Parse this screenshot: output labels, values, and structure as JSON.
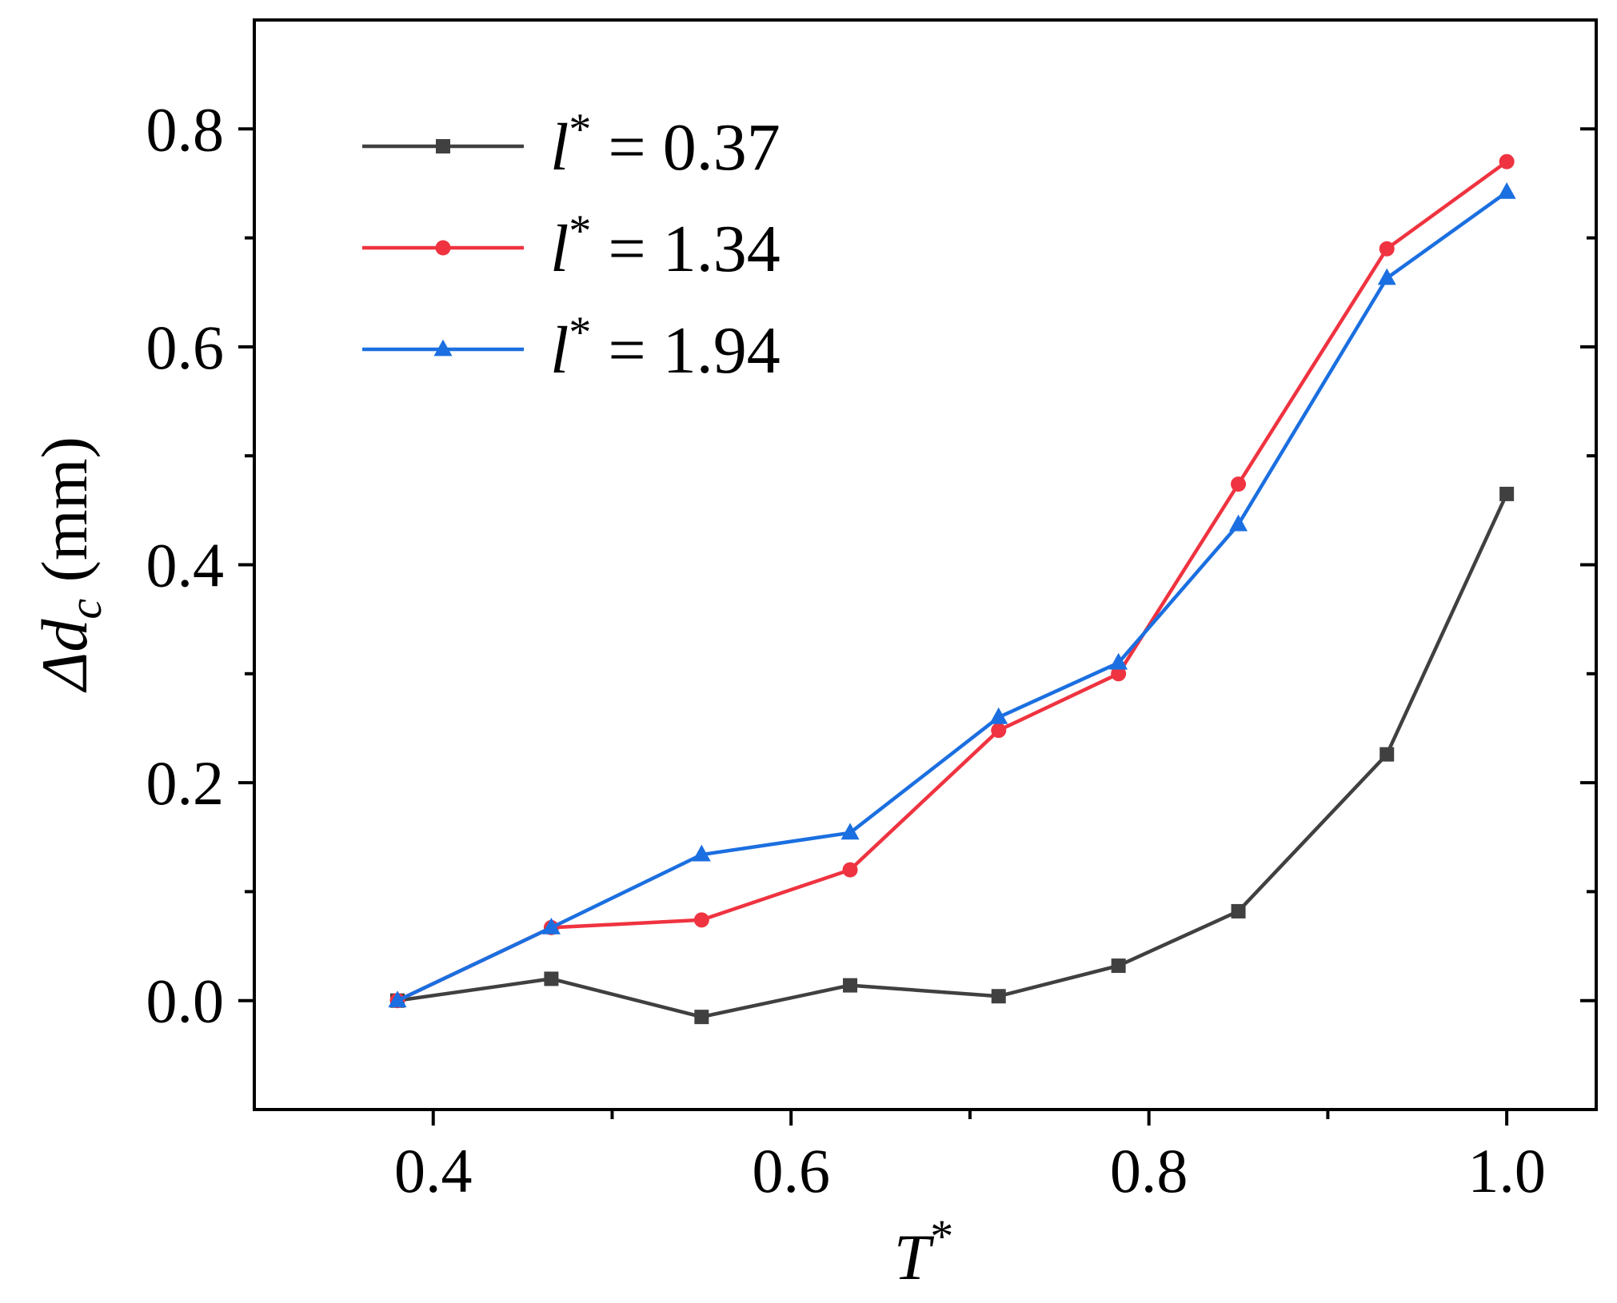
{
  "chart_data": {
    "type": "line",
    "title": "",
    "xlabel": {
      "symbol": "T",
      "sup": "*"
    },
    "ylabel": {
      "prefix": "Δ",
      "symbol": "d",
      "sub": "c",
      "unit": " (mm)"
    },
    "xlim": [
      0.3,
      1.05
    ],
    "ylim": [
      -0.1,
      0.9
    ],
    "x_ticks": [
      0.4,
      0.6,
      0.8,
      1.0
    ],
    "x_tick_labels": [
      "0.4",
      "0.6",
      "0.8",
      "1.0"
    ],
    "x_minor_ticks": [
      0.5,
      0.7,
      0.9
    ],
    "y_ticks": [
      0.0,
      0.2,
      0.4,
      0.6,
      0.8
    ],
    "y_tick_labels": [
      "0.0",
      "0.2",
      "0.4",
      "0.6",
      "0.8"
    ],
    "y_minor_ticks": [
      0.1,
      0.3,
      0.5,
      0.7
    ],
    "grid": false,
    "legend_position": "top-left",
    "x": [
      0.38,
      0.466,
      0.55,
      0.633,
      0.716,
      0.783,
      0.85,
      0.933,
      1.0
    ],
    "series": [
      {
        "name": "l* = 0.37",
        "legend_symbol": "l",
        "legend_sup": "*",
        "legend_value": " = 0.37",
        "color": "#404040",
        "marker": "square",
        "values": [
          0.0,
          0.02,
          -0.015,
          0.014,
          0.004,
          0.032,
          0.082,
          0.226,
          0.465
        ]
      },
      {
        "name": "l* = 1.34",
        "legend_symbol": "l",
        "legend_sup": "*",
        "legend_value": " = 1.34",
        "color": "#ef3340",
        "marker": "circle",
        "values": [
          0.0,
          0.067,
          0.074,
          0.12,
          0.248,
          0.3,
          0.474,
          0.69,
          0.77
        ]
      },
      {
        "name": "l* = 1.94",
        "legend_symbol": "l",
        "legend_sup": "*",
        "legend_value": " = 1.94",
        "color": "#1b6fe0",
        "marker": "triangle",
        "values": [
          0.0,
          0.067,
          0.134,
          0.154,
          0.26,
          0.31,
          0.437,
          0.663,
          0.742
        ]
      }
    ]
  }
}
